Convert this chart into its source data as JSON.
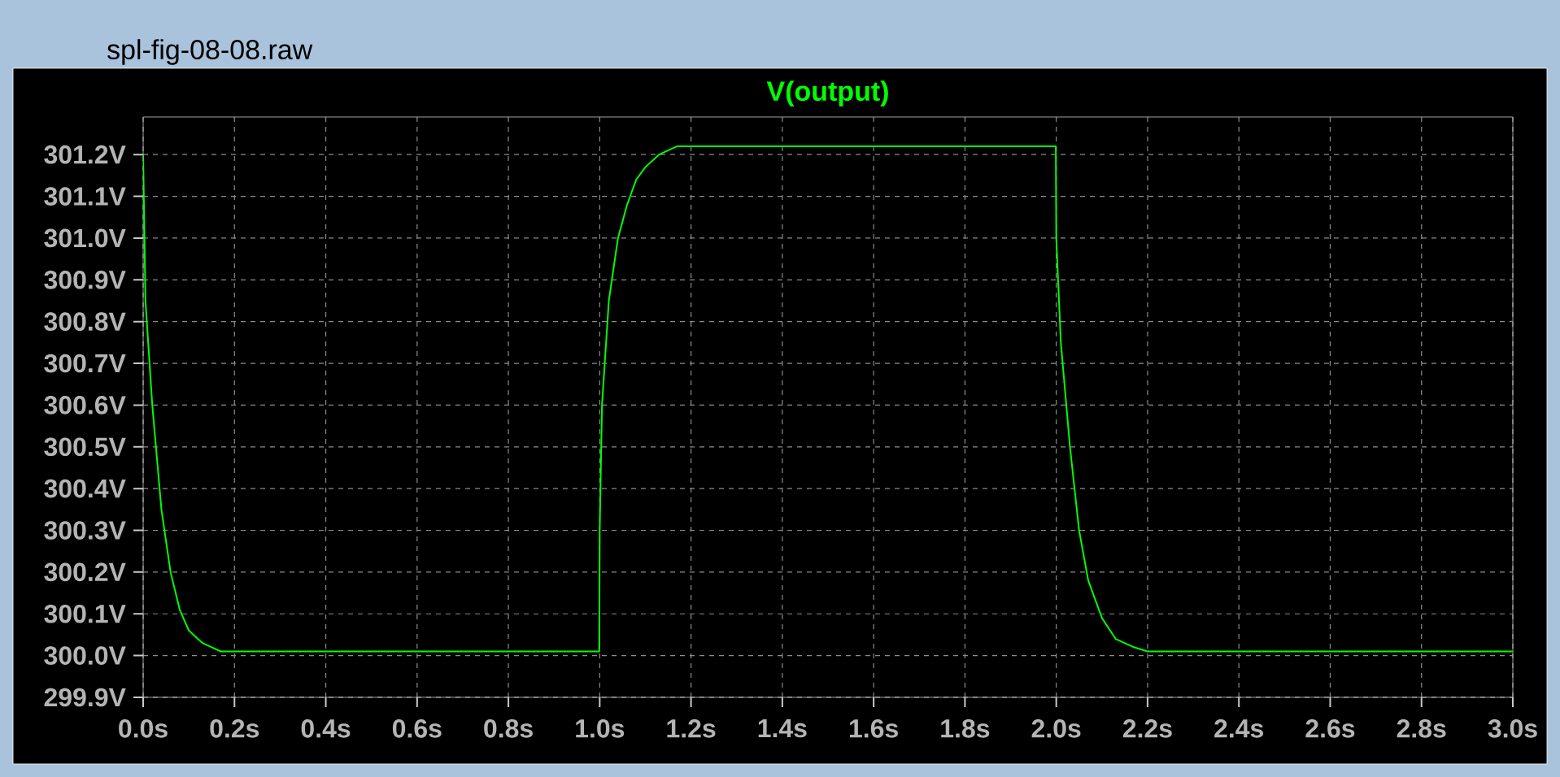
{
  "chart_data": {
    "type": "line",
    "title": "V(output)",
    "annotations": [
      "spl-fig-08-08.raw"
    ],
    "x": [
      0,
      0.005,
      0.02,
      0.04,
      0.06,
      0.08,
      0.1,
      0.13,
      0.17,
      0.3,
      0.5,
      0.7,
      0.9,
      0.999,
      1.0,
      1.005,
      1.02,
      1.04,
      1.06,
      1.08,
      1.1,
      1.13,
      1.17,
      1.5,
      1.8,
      1.999,
      2.0,
      2.01,
      2.03,
      2.05,
      2.07,
      2.1,
      2.13,
      2.17,
      2.2,
      2.5,
      2.8,
      3.0
    ],
    "series": [
      {
        "color": "#00ff00",
        "values": [
          301.2,
          300.85,
          300.6,
          300.35,
          300.2,
          300.11,
          300.06,
          300.03,
          300.01,
          300.01,
          300.01,
          300.01,
          300.01,
          300.01,
          300.3,
          300.6,
          300.85,
          301.0,
          301.08,
          301.14,
          301.17,
          301.2,
          301.22,
          301.22,
          301.22,
          301.22,
          301.0,
          300.75,
          300.5,
          300.3,
          300.18,
          300.09,
          300.04,
          300.02,
          300.01,
          300.01,
          300.01,
          300.01
        ]
      }
    ],
    "xlim": [
      0,
      3
    ],
    "ylim": [
      299.9,
      301.29
    ],
    "xticks": [
      {
        "value": 0,
        "label": "0.0s"
      },
      {
        "value": 0.2,
        "label": "0.2s"
      },
      {
        "value": 0.4,
        "label": "0.4s"
      },
      {
        "value": 0.6,
        "label": "0.6s"
      },
      {
        "value": 0.8,
        "label": "0.8s"
      },
      {
        "value": 1.0,
        "label": "1.0s"
      },
      {
        "value": 1.2,
        "label": "1.2s"
      },
      {
        "value": 1.4,
        "label": "1.4s"
      },
      {
        "value": 1.6,
        "label": "1.6s"
      },
      {
        "value": 1.8,
        "label": "1.8s"
      },
      {
        "value": 2.0,
        "label": "2.0s"
      },
      {
        "value": 2.2,
        "label": "2.2s"
      },
      {
        "value": 2.4,
        "label": "2.4s"
      },
      {
        "value": 2.6,
        "label": "2.6s"
      },
      {
        "value": 2.8,
        "label": "2.8s"
      },
      {
        "value": 3.0,
        "label": "3.0s"
      }
    ],
    "yticks": [
      {
        "value": 299.9,
        "label": "299.9V"
      },
      {
        "value": 300.0,
        "label": "300.0V"
      },
      {
        "value": 300.1,
        "label": "300.1V"
      },
      {
        "value": 300.2,
        "label": "300.2V"
      },
      {
        "value": 300.3,
        "label": "300.3V"
      },
      {
        "value": 300.4,
        "label": "300.4V"
      },
      {
        "value": 300.5,
        "label": "300.5V"
      },
      {
        "value": 300.6,
        "label": "300.6V"
      },
      {
        "value": 300.7,
        "label": "300.7V"
      },
      {
        "value": 300.8,
        "label": "300.8V"
      },
      {
        "value": 300.9,
        "label": "300.9V"
      },
      {
        "value": 301.0,
        "label": "301.0V"
      },
      {
        "value": 301.1,
        "label": "301.1V"
      },
      {
        "value": 301.2,
        "label": "301.2V"
      }
    ],
    "grid": true,
    "line_style": "solid",
    "marker": "none"
  }
}
